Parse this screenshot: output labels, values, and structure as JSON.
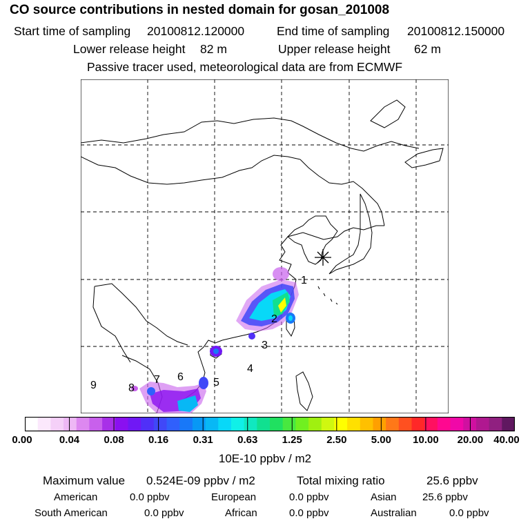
{
  "header": {
    "title": "CO  source contributions in nested domain for gosan_201008",
    "start_label": "Start time of sampling",
    "start_value": "20100812.120000",
    "end_label": "End time of sampling",
    "end_value": "20100812.150000",
    "lower_label": "Lower release height",
    "lower_value": "82 m",
    "upper_label": "Upper release height",
    "upper_value": "62 m",
    "note": "Passive tracer used, meteorological data are from ECMWF"
  },
  "map": {
    "receptor_marker": "asterisk-icon",
    "region_labels": [
      "1",
      "2",
      "3",
      "4",
      "5",
      "6",
      "7",
      "8",
      "9"
    ]
  },
  "colorbar": {
    "tick_labels": [
      "0.00",
      "0.04",
      "0.08",
      "0.16",
      "0.31",
      "0.63",
      "1.25",
      "2.50",
      "5.00",
      "10.00",
      "20.00",
      "40.00"
    ],
    "colors": [
      "#ffffff",
      "#fbe8fc",
      "#f5d0f8",
      "#eeb8f5",
      "#dd88f0",
      "#c860ec",
      "#a830e8",
      "#8a10f0",
      "#7018f5",
      "#5030f8",
      "#4048f8",
      "#3060fc",
      "#1878f8",
      "#0898f5",
      "#08b8f5",
      "#08d8f8",
      "#10f0e8",
      "#10e8c0",
      "#10e090",
      "#20e060",
      "#48e840",
      "#70f020",
      "#a0f010",
      "#d0f810",
      "#ffff00",
      "#ffe000",
      "#ffc000",
      "#ffa000",
      "#ff7818",
      "#ff5020",
      "#ff2828",
      "#ff1060",
      "#ff0890",
      "#f008a8",
      "#d010a0",
      "#b01890",
      "#902080",
      "#601860"
    ],
    "units": "10E-10 ppbv / m2"
  },
  "summary": {
    "max_label": "Maximum value",
    "max_value": "0.524E-09 ppbv / m2",
    "total_label": "Total mixing ratio",
    "total_value": "25.6 ppbv",
    "american_label": "American",
    "american_value": "0.0 ppbv",
    "european_label": "European",
    "european_value": "0.0 ppbv",
    "asian_label": "Asian",
    "asian_value": "25.6 ppbv",
    "south_american_label": "South American",
    "south_american_value": "0.0 ppbv",
    "african_label": "African",
    "african_value": "0.0 ppbv",
    "australian_label": "Australian",
    "australian_value": "0.0 ppbv"
  }
}
